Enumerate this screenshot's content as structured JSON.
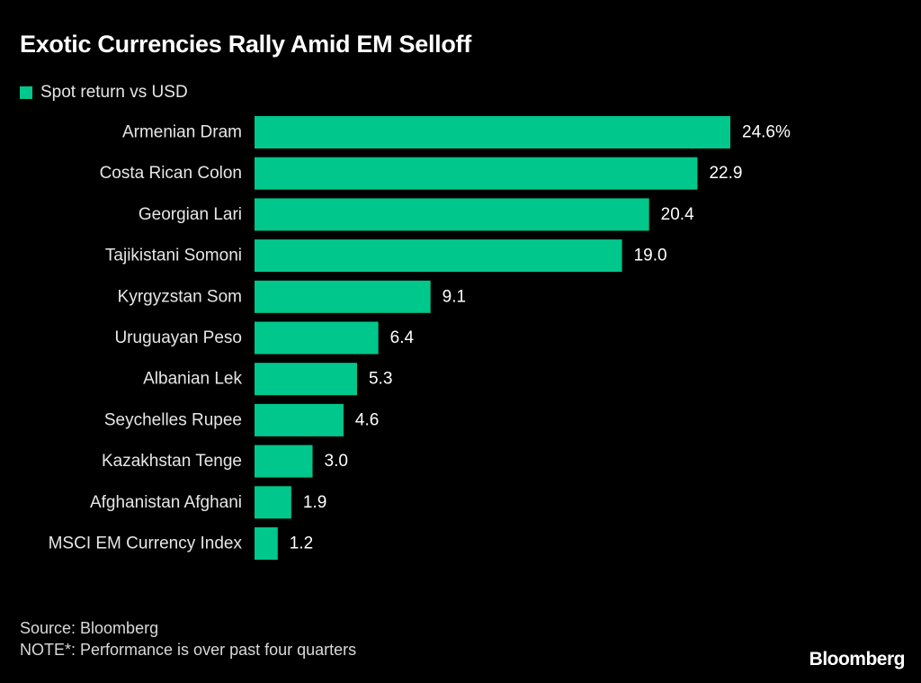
{
  "chart_data": {
    "type": "bar",
    "orientation": "horizontal",
    "title": "Exotic Currencies Rally Amid EM Selloff",
    "legend": [
      {
        "name": "Spot return vs USD",
        "color": "#00c78c"
      }
    ],
    "legend_position": "top-left",
    "categories": [
      "Armenian Dram",
      "Costa Rican Colon",
      "Georgian Lari",
      "Tajikistani Somoni",
      "Kyrgyzstan Som",
      "Uruguayan Peso",
      "Albanian Lek",
      "Seychelles Rupee",
      "Kazakhstan Tenge",
      "Afghanistan Afghani",
      "MSCI EM Currency Index"
    ],
    "series": [
      {
        "name": "Spot return vs USD",
        "values": [
          24.6,
          22.9,
          20.4,
          19.0,
          9.1,
          6.4,
          5.3,
          4.6,
          3.0,
          1.9,
          1.2
        ]
      }
    ],
    "value_labels": [
      "24.6%",
      "22.9",
      "20.4",
      "19.0",
      "9.1",
      "6.4",
      "5.3",
      "4.6",
      "3.0",
      "1.9",
      "1.2"
    ],
    "xlabel": "",
    "ylabel": "",
    "xlim": [
      0,
      24.6
    ],
    "grid": false,
    "colors": {
      "bar": "#00c78c",
      "background": "#000000",
      "text": "#ffffff"
    }
  },
  "footer": {
    "source": "Source: Bloomberg",
    "note": "NOTE*: Performance is over past four quarters"
  },
  "brand": "Bloomberg"
}
